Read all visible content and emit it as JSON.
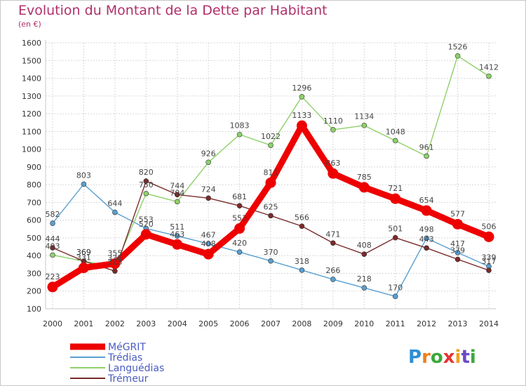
{
  "title": "Evolution du Montant de la Dette par Habitant",
  "subtitle": "(en €)",
  "logo": {
    "letters": [
      "P",
      "r",
      "o",
      "x",
      "i",
      "t",
      "i"
    ],
    "colors": [
      "#2e8fd6",
      "#f07f1c",
      "#3aa83a",
      "#e53535",
      "#f0a020",
      "#6a4bc4",
      "#3aa83a"
    ]
  },
  "chart_data": {
    "type": "line",
    "title": "Evolution du Montant de la Dette par Habitant",
    "subtitle": "(en €)",
    "xlabel": "",
    "ylabel": "",
    "ylim": [
      100,
      1600
    ],
    "yticks": [
      100,
      200,
      300,
      400,
      500,
      600,
      700,
      800,
      900,
      1000,
      1100,
      1200,
      1300,
      1400,
      1500,
      1600
    ],
    "grid": true,
    "legend_position": "bottom-left",
    "x": [
      "2000",
      "2001",
      "2002",
      "2003",
      "2004",
      "2005",
      "2006",
      "2007",
      "2008",
      "2009",
      "2010",
      "2011",
      "2012",
      "2013",
      "2014"
    ],
    "series": [
      {
        "name": "Trédias",
        "color": "#5a9fd0",
        "values": [
          582,
          803,
          644,
          553,
          511,
          467,
          420,
          370,
          318,
          266,
          218,
          170,
          498,
          417,
          339
        ]
      },
      {
        "name": "Languédias",
        "color": "#8ed06a",
        "values": [
          403,
          369,
          336,
          750,
          704,
          926,
          1083,
          1022,
          1296,
          1110,
          1134,
          1048,
          961,
          1526,
          1412
        ]
      },
      {
        "name": "Trémeur",
        "color": "#7a2a2a",
        "values": [
          444,
          369,
          313,
          820,
          744,
          724,
          681,
          625,
          566,
          471,
          408,
          501,
          443,
          379,
          317
        ]
      },
      {
        "name": "MéGRIT",
        "color": "#ee0000",
        "values": [
          223,
          331,
          355,
          520,
          463,
          408,
          553,
          811,
          1133,
          863,
          785,
          721,
          654,
          577,
          506
        ]
      }
    ]
  }
}
